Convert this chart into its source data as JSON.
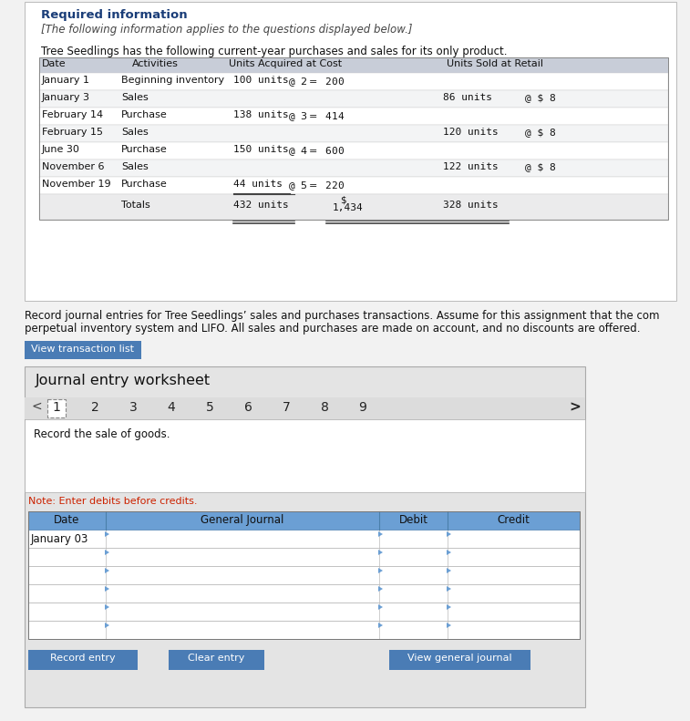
{
  "bg_color": "#f2f2f2",
  "page_bg": "#ffffff",
  "required_info_title": "Required information",
  "required_info_subtitle": "[The following information applies to the questions displayed below.]",
  "intro_text": "Tree Seedlings has the following current-year purchases and sales for its only product.",
  "table_header_bg": "#c8cdd8",
  "table_rows": [
    [
      "January 1",
      "Beginning inventory",
      "100 units",
      "@ $2 = $ 200",
      "",
      ""
    ],
    [
      "January 3",
      "Sales",
      "",
      "",
      "86 units",
      "@ $ 8"
    ],
    [
      "February 14",
      "Purchase",
      "138 units",
      "@ $3 = $ 414",
      "",
      ""
    ],
    [
      "February 15",
      "Sales",
      "",
      "",
      "120 units",
      "@ $ 8"
    ],
    [
      "June 30",
      "Purchase",
      "150 units",
      "@ $4 = $ 600",
      "",
      ""
    ],
    [
      "November 6",
      "Sales",
      "",
      "",
      "122 units",
      "@ $ 8"
    ],
    [
      "November 19",
      "Purchase",
      "44 units",
      "@ $5 = $ 220",
      "",
      ""
    ]
  ],
  "record_text_line1": "Record journal entries for Tree Seedlings’ sales and purchases transactions. Assume for this assignment that the com",
  "record_text_line2": "perpetual inventory system and LIFO. All sales and purchases are made on account, and no discounts are offered.",
  "btn_view_transaction": "View transaction list",
  "btn_color": "#4a7cb5",
  "btn_text_color": "#ffffff",
  "worksheet_title": "Journal entry worksheet",
  "page_numbers": [
    "1",
    "2",
    "3",
    "4",
    "5",
    "6",
    "7",
    "8",
    "9"
  ],
  "current_page": "1",
  "instruction_text": "Record the sale of goods.",
  "date_label": "January 03",
  "note_text": "Note: Enter debits before credits.",
  "note_color": "#cc2200",
  "journal_header": [
    "Date",
    "General Journal",
    "Debit",
    "Credit"
  ],
  "journal_header_bg": "#6b9fd4",
  "num_data_rows": 6,
  "bottom_btns": [
    "Record entry",
    "Clear entry",
    "View general journal"
  ],
  "title_color": "#1a3d78",
  "worksheet_bg": "#e4e4e4",
  "table_outer_bg": "#f5f5f5"
}
